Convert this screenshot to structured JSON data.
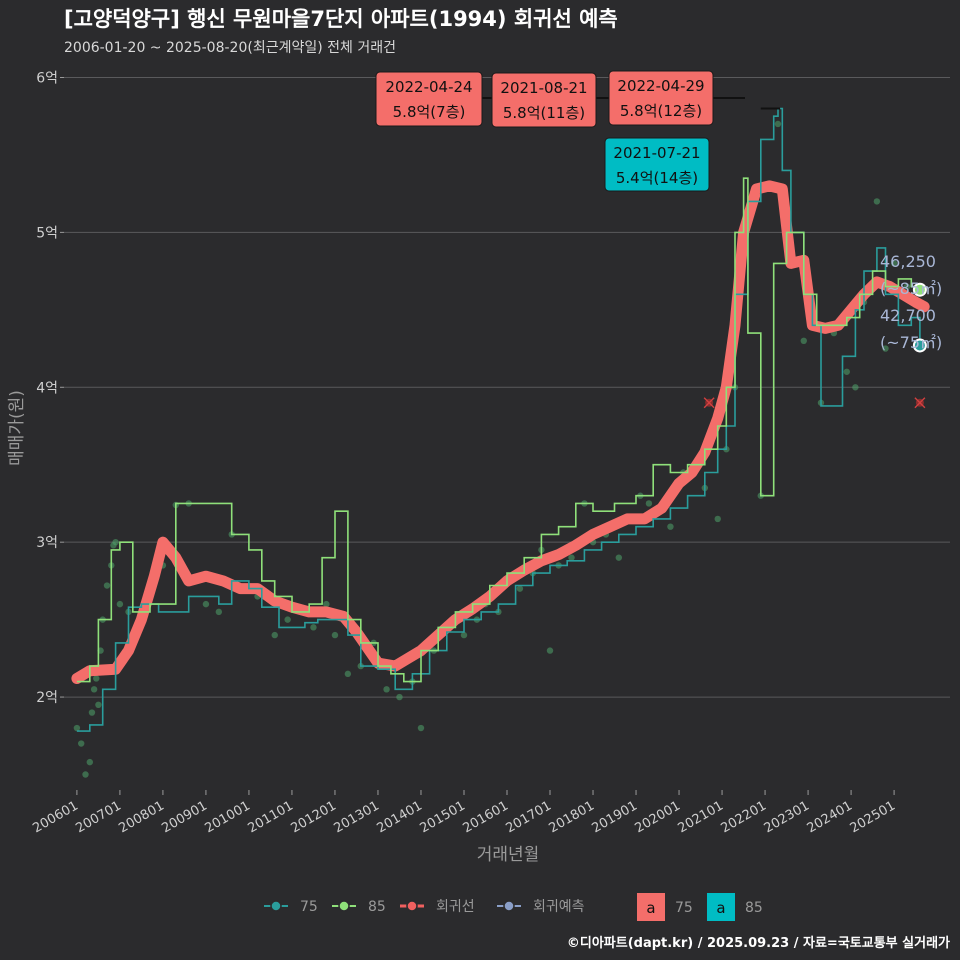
{
  "header": {
    "title": "[고양덕양구] 행신 무원마을7단지 아파트(1994) 회귀선 예측",
    "subtitle": "2006-01-20 ~ 2025-08-20(최근계약일) 전체 거래건"
  },
  "footer": {
    "credit": "©디아파트(dapt.kr) / 2025.09.23 / 자료=국토교통부 실거래가"
  },
  "chart_data": {
    "type": "line",
    "xlabel": "거래년월",
    "ylabel": "매매가(원)",
    "ylim": [
      1.4,
      6.1
    ],
    "xlim": [
      2005.7,
      2026.3
    ],
    "y_ticks": [
      {
        "value": 2,
        "label": "2억"
      },
      {
        "value": 3,
        "label": "3억"
      },
      {
        "value": 4,
        "label": "4억"
      },
      {
        "value": 5,
        "label": "5억"
      },
      {
        "value": 6,
        "label": "6억"
      }
    ],
    "x_ticks": [
      "200601",
      "200701",
      "200801",
      "200901",
      "201001",
      "201101",
      "201201",
      "201301",
      "201401",
      "201501",
      "201601",
      "201701",
      "201801",
      "201901",
      "202001",
      "202101",
      "202201",
      "202301",
      "202401",
      "202501"
    ],
    "grid": true,
    "legend_position": "bottom",
    "legend": {
      "lines": [
        {
          "label": "75",
          "color": "#2a9d9c"
        },
        {
          "label": "85",
          "color": "#8fe07a"
        },
        {
          "label": "회귀선",
          "color": "#f0605f"
        },
        {
          "label": "회귀예측",
          "color": "#8a9fc8"
        }
      ],
      "boxes": [
        {
          "glyph": "a",
          "label": "75",
          "color": "#f46e6a"
        },
        {
          "glyph": "a",
          "label": "85",
          "color": "#00bcc4"
        }
      ]
    },
    "series": [
      {
        "name": "75",
        "color": "#2a9d9c",
        "values": [
          [
            2006.0,
            1.78
          ],
          [
            2006.3,
            1.82
          ],
          [
            2006.6,
            2.05
          ],
          [
            2006.9,
            2.35
          ],
          [
            2007.2,
            2.58
          ],
          [
            2007.5,
            2.6
          ],
          [
            2007.9,
            2.55
          ],
          [
            2008.3,
            2.55
          ],
          [
            2008.6,
            2.65
          ],
          [
            2009.0,
            2.65
          ],
          [
            2009.3,
            2.6
          ],
          [
            2009.6,
            2.75
          ],
          [
            2010.0,
            2.7
          ],
          [
            2010.3,
            2.58
          ],
          [
            2010.7,
            2.45
          ],
          [
            2011.0,
            2.45
          ],
          [
            2011.3,
            2.48
          ],
          [
            2011.6,
            2.5
          ],
          [
            2012.0,
            2.5
          ],
          [
            2012.3,
            2.4
          ],
          [
            2012.6,
            2.2
          ],
          [
            2013.0,
            2.18
          ],
          [
            2013.4,
            2.05
          ],
          [
            2013.8,
            2.15
          ],
          [
            2014.2,
            2.3
          ],
          [
            2014.6,
            2.42
          ],
          [
            2015.0,
            2.5
          ],
          [
            2015.4,
            2.55
          ],
          [
            2015.8,
            2.6
          ],
          [
            2016.2,
            2.72
          ],
          [
            2016.6,
            2.8
          ],
          [
            2017.0,
            2.85
          ],
          [
            2017.4,
            2.88
          ],
          [
            2017.8,
            2.95
          ],
          [
            2018.2,
            3.0
          ],
          [
            2018.6,
            3.05
          ],
          [
            2019.0,
            3.1
          ],
          [
            2019.4,
            3.15
          ],
          [
            2019.8,
            3.22
          ],
          [
            2020.2,
            3.3
          ],
          [
            2020.6,
            3.45
          ],
          [
            2020.9,
            3.6
          ],
          [
            2021.1,
            3.75
          ],
          [
            2021.3,
            4.6
          ],
          [
            2021.6,
            5.2
          ],
          [
            2021.9,
            5.6
          ],
          [
            2022.2,
            5.75
          ],
          [
            2022.3,
            5.8
          ],
          [
            2022.4,
            5.4
          ],
          [
            2022.6,
            5.0
          ],
          [
            2022.9,
            4.6
          ],
          [
            2023.1,
            4.4
          ],
          [
            2023.3,
            3.88
          ],
          [
            2023.5,
            3.88
          ],
          [
            2023.8,
            4.2
          ],
          [
            2024.1,
            4.5
          ],
          [
            2024.3,
            4.75
          ],
          [
            2024.6,
            4.9
          ],
          [
            2024.8,
            4.6
          ],
          [
            2025.1,
            4.4
          ],
          [
            2025.4,
            4.45
          ],
          [
            2025.6,
            4.27
          ]
        ],
        "last_label": "42,700",
        "last_area": "(~75㎡)"
      },
      {
        "name": "85",
        "color": "#8fe07a",
        "values": [
          [
            2006.0,
            2.1
          ],
          [
            2006.3,
            2.2
          ],
          [
            2006.5,
            2.5
          ],
          [
            2006.8,
            2.95
          ],
          [
            2007.0,
            3.0
          ],
          [
            2007.3,
            2.55
          ],
          [
            2007.7,
            2.6
          ],
          [
            2008.3,
            3.25
          ],
          [
            2009.0,
            3.25
          ],
          [
            2009.6,
            3.05
          ],
          [
            2010.0,
            2.95
          ],
          [
            2010.3,
            2.75
          ],
          [
            2010.6,
            2.65
          ],
          [
            2011.0,
            2.55
          ],
          [
            2011.4,
            2.6
          ],
          [
            2011.7,
            2.9
          ],
          [
            2012.0,
            3.2
          ],
          [
            2012.3,
            2.5
          ],
          [
            2012.6,
            2.35
          ],
          [
            2013.0,
            2.2
          ],
          [
            2013.3,
            2.15
          ],
          [
            2013.6,
            2.1
          ],
          [
            2014.0,
            2.3
          ],
          [
            2014.4,
            2.45
          ],
          [
            2014.8,
            2.55
          ],
          [
            2015.2,
            2.6
          ],
          [
            2015.6,
            2.72
          ],
          [
            2016.0,
            2.8
          ],
          [
            2016.4,
            2.9
          ],
          [
            2016.8,
            3.05
          ],
          [
            2017.2,
            3.1
          ],
          [
            2017.6,
            3.25
          ],
          [
            2018.0,
            3.2
          ],
          [
            2018.5,
            3.25
          ],
          [
            2019.0,
            3.3
          ],
          [
            2019.4,
            3.5
          ],
          [
            2019.8,
            3.45
          ],
          [
            2020.2,
            3.5
          ],
          [
            2020.6,
            3.6
          ],
          [
            2020.9,
            3.75
          ],
          [
            2021.1,
            4.0
          ],
          [
            2021.3,
            5.0
          ],
          [
            2021.5,
            5.35
          ],
          [
            2021.6,
            4.35
          ],
          [
            2021.9,
            3.3
          ],
          [
            2022.2,
            4.8
          ],
          [
            2022.5,
            5.0
          ],
          [
            2022.9,
            4.6
          ],
          [
            2023.2,
            4.4
          ],
          [
            2023.6,
            4.4
          ],
          [
            2023.9,
            4.45
          ],
          [
            2024.2,
            4.6
          ],
          [
            2024.5,
            4.75
          ],
          [
            2024.8,
            4.65
          ],
          [
            2025.1,
            4.7
          ],
          [
            2025.4,
            4.65
          ],
          [
            2025.6,
            4.63
          ]
        ],
        "last_label": "46,250",
        "last_area": "(~85㎡)"
      },
      {
        "name": "회귀선",
        "color": "#f46e6a",
        "values": [
          [
            2006.0,
            2.12
          ],
          [
            2006.3,
            2.17
          ],
          [
            2006.9,
            2.18
          ],
          [
            2007.2,
            2.3
          ],
          [
            2007.5,
            2.5
          ],
          [
            2007.8,
            2.78
          ],
          [
            2008.0,
            3.0
          ],
          [
            2008.3,
            2.9
          ],
          [
            2008.6,
            2.75
          ],
          [
            2009.0,
            2.78
          ],
          [
            2009.4,
            2.75
          ],
          [
            2009.8,
            2.7
          ],
          [
            2010.2,
            2.7
          ],
          [
            2010.6,
            2.62
          ],
          [
            2011.0,
            2.58
          ],
          [
            2011.4,
            2.55
          ],
          [
            2011.8,
            2.55
          ],
          [
            2012.2,
            2.52
          ],
          [
            2012.5,
            2.42
          ],
          [
            2012.8,
            2.3
          ],
          [
            2013.0,
            2.22
          ],
          [
            2013.4,
            2.2
          ],
          [
            2013.7,
            2.25
          ],
          [
            2014.0,
            2.3
          ],
          [
            2014.4,
            2.4
          ],
          [
            2014.8,
            2.5
          ],
          [
            2015.2,
            2.57
          ],
          [
            2015.6,
            2.65
          ],
          [
            2016.0,
            2.75
          ],
          [
            2016.4,
            2.82
          ],
          [
            2016.8,
            2.88
          ],
          [
            2017.2,
            2.92
          ],
          [
            2017.6,
            2.98
          ],
          [
            2018.0,
            3.05
          ],
          [
            2018.4,
            3.1
          ],
          [
            2018.8,
            3.15
          ],
          [
            2019.2,
            3.15
          ],
          [
            2019.6,
            3.22
          ],
          [
            2020.0,
            3.38
          ],
          [
            2020.3,
            3.45
          ],
          [
            2020.6,
            3.58
          ],
          [
            2020.9,
            3.8
          ],
          [
            2021.1,
            4.0
          ],
          [
            2021.3,
            4.4
          ],
          [
            2021.5,
            5.0
          ],
          [
            2021.8,
            5.28
          ],
          [
            2022.1,
            5.3
          ],
          [
            2022.4,
            5.28
          ],
          [
            2022.6,
            4.8
          ],
          [
            2022.9,
            4.82
          ],
          [
            2023.1,
            4.4
          ],
          [
            2023.4,
            4.38
          ],
          [
            2023.7,
            4.4
          ],
          [
            2024.0,
            4.5
          ],
          [
            2024.3,
            4.6
          ],
          [
            2024.6,
            4.68
          ],
          [
            2024.9,
            4.65
          ],
          [
            2025.2,
            4.6
          ],
          [
            2025.5,
            4.55
          ],
          [
            2025.7,
            4.52
          ]
        ]
      },
      {
        "name": "회귀예측",
        "color": "#8a9fc8",
        "values": []
      }
    ],
    "scatter_points": [
      [
        2006.0,
        1.8
      ],
      [
        2006.1,
        1.7
      ],
      [
        2006.2,
        1.5
      ],
      [
        2006.3,
        1.58
      ],
      [
        2006.35,
        1.9
      ],
      [
        2006.4,
        2.05
      ],
      [
        2006.45,
        2.12
      ],
      [
        2006.5,
        1.95
      ],
      [
        2006.55,
        2.3
      ],
      [
        2006.6,
        2.5
      ],
      [
        2006.7,
        2.72
      ],
      [
        2006.8,
        2.85
      ],
      [
        2006.85,
        2.98
      ],
      [
        2006.9,
        3.0
      ],
      [
        2007.0,
        2.6
      ],
      [
        2007.2,
        2.55
      ],
      [
        2007.5,
        2.55
      ],
      [
        2008.0,
        2.85
      ],
      [
        2008.3,
        3.24
      ],
      [
        2008.6,
        3.25
      ],
      [
        2009.0,
        2.6
      ],
      [
        2009.3,
        2.55
      ],
      [
        2009.6,
        3.05
      ],
      [
        2009.9,
        2.7
      ],
      [
        2010.2,
        2.65
      ],
      [
        2010.6,
        2.4
      ],
      [
        2010.9,
        2.5
      ],
      [
        2011.2,
        2.55
      ],
      [
        2011.5,
        2.45
      ],
      [
        2011.8,
        2.6
      ],
      [
        2012.0,
        2.4
      ],
      [
        2012.3,
        2.15
      ],
      [
        2012.6,
        2.2
      ],
      [
        2012.9,
        2.35
      ],
      [
        2013.0,
        2.2
      ],
      [
        2013.2,
        2.05
      ],
      [
        2013.5,
        2.0
      ],
      [
        2013.8,
        2.1
      ],
      [
        2014.0,
        1.8
      ],
      [
        2014.3,
        2.3
      ],
      [
        2014.6,
        2.45
      ],
      [
        2014.8,
        2.5
      ],
      [
        2015.0,
        2.4
      ],
      [
        2015.3,
        2.5
      ],
      [
        2015.5,
        2.6
      ],
      [
        2015.8,
        2.55
      ],
      [
        2016.0,
        2.75
      ],
      [
        2016.3,
        2.7
      ],
      [
        2016.6,
        2.8
      ],
      [
        2016.8,
        2.95
      ],
      [
        2017.0,
        2.3
      ],
      [
        2017.2,
        2.85
      ],
      [
        2017.5,
        2.9
      ],
      [
        2017.8,
        3.25
      ],
      [
        2018.0,
        3.0
      ],
      [
        2018.3,
        3.05
      ],
      [
        2018.6,
        2.9
      ],
      [
        2018.9,
        3.15
      ],
      [
        2019.1,
        3.3
      ],
      [
        2019.3,
        3.25
      ],
      [
        2019.5,
        3.2
      ],
      [
        2019.8,
        3.1
      ],
      [
        2020.1,
        3.45
      ],
      [
        2020.4,
        3.5
      ],
      [
        2020.6,
        3.35
      ],
      [
        2020.9,
        3.15
      ],
      [
        2021.1,
        3.6
      ],
      [
        2021.3,
        4.0
      ],
      [
        2021.6,
        5.1
      ],
      [
        2021.9,
        3.3
      ],
      [
        2022.3,
        5.7
      ],
      [
        2022.6,
        4.9
      ],
      [
        2022.9,
        4.3
      ],
      [
        2023.3,
        3.9
      ],
      [
        2023.6,
        4.35
      ],
      [
        2023.9,
        4.1
      ],
      [
        2024.1,
        4.0
      ],
      [
        2024.3,
        4.55
      ],
      [
        2024.6,
        5.2
      ],
      [
        2024.8,
        4.25
      ],
      [
        2025.0,
        4.8
      ],
      [
        2025.3,
        4.65
      ]
    ],
    "outliers": [
      [
        2020.7,
        3.9
      ],
      [
        2025.6,
        3.9
      ]
    ],
    "max_band": {
      "x_start": 2021.9,
      "x_end": 2022.35,
      "y": 5.8
    },
    "annotations": [
      {
        "date": "2022-04-24",
        "price": "5.8억(7층)",
        "color": "#f46e6a",
        "x": 2022.31,
        "y": 5.8
      },
      {
        "date": "2021-08-21",
        "price": "5.8억(11층)",
        "color": "#f46e6a",
        "x": 2021.64,
        "y": 5.8
      },
      {
        "date": "2022-04-29",
        "price": "5.8억(12층)",
        "color": "#f46e6a",
        "x": 2022.32,
        "y": 5.8
      },
      {
        "date": "2021-07-21",
        "price": "5.4억(14층)",
        "color": "#00bcc4",
        "x": 2021.55,
        "y": 5.4
      }
    ]
  }
}
